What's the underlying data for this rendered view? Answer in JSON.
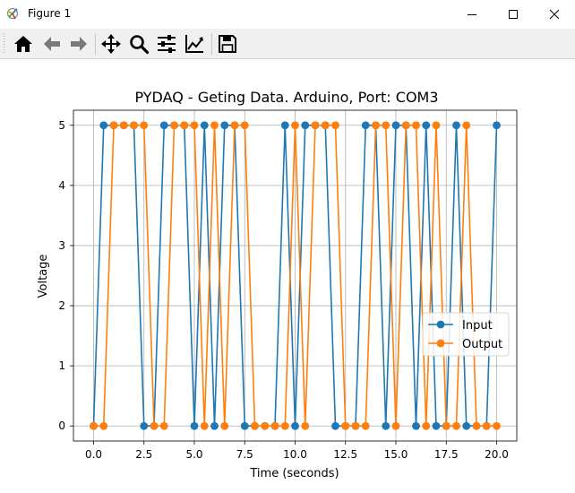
{
  "window": {
    "title": "Figure 1",
    "icons": [
      "app-icon",
      "minimize-icon",
      "maximize-icon",
      "close-icon"
    ]
  },
  "toolbar": {
    "buttons": [
      {
        "name": "home",
        "icon": "home-icon",
        "tooltip": "Reset original view"
      },
      {
        "name": "back",
        "icon": "back-arrow-icon",
        "tooltip": "Back to previous view"
      },
      {
        "name": "forward",
        "icon": "forward-arrow-icon",
        "tooltip": "Forward to next view"
      },
      {
        "name": "pan",
        "icon": "move-icon",
        "tooltip": "Pan axes"
      },
      {
        "name": "zoom",
        "icon": "zoom-icon",
        "tooltip": "Zoom to rectangle"
      },
      {
        "name": "configure",
        "icon": "sliders-icon",
        "tooltip": "Configure subplots"
      },
      {
        "name": "edit",
        "icon": "line-chart-icon",
        "tooltip": "Edit axis, curve and image parameters"
      },
      {
        "name": "save",
        "icon": "save-icon",
        "tooltip": "Save the figure"
      }
    ]
  },
  "chart_data": {
    "type": "line",
    "title": "PYDAQ - Geting Data. Arduino, Port: COM3",
    "xlabel": "Time (seconds)",
    "ylabel": "Voltage",
    "xlim": [
      -1.0,
      21.0
    ],
    "ylim": [
      -0.25,
      5.25
    ],
    "xticks": [
      0.0,
      2.5,
      5.0,
      7.5,
      10.0,
      12.5,
      15.0,
      17.5,
      20.0
    ],
    "xtick_labels": [
      "0.0",
      "2.5",
      "5.0",
      "7.5",
      "10.0",
      "12.5",
      "15.0",
      "17.5",
      "20.0"
    ],
    "yticks": [
      0,
      1,
      2,
      3,
      4,
      5
    ],
    "ytick_labels": [
      "0",
      "1",
      "2",
      "3",
      "4",
      "5"
    ],
    "grid": true,
    "legend": "center-right",
    "series": [
      {
        "name": "Input",
        "color": "#1f77b4",
        "marker": "circle",
        "x": [
          0.0,
          0.5,
          1.0,
          1.5,
          2.0,
          2.5,
          3.0,
          3.5,
          4.0,
          4.5,
          5.0,
          5.5,
          6.0,
          6.5,
          7.0,
          7.5,
          8.0,
          8.5,
          9.0,
          9.5,
          10.0,
          10.5,
          11.0,
          11.5,
          12.0,
          12.5,
          13.0,
          13.5,
          14.0,
          14.5,
          15.0,
          15.5,
          16.0,
          16.5,
          17.0,
          17.5,
          18.0,
          18.5,
          19.0,
          19.5,
          20.0
        ],
        "y": [
          0,
          5,
          5,
          5,
          5,
          0,
          0,
          5,
          5,
          5,
          0,
          5,
          0,
          5,
          5,
          0,
          0,
          0,
          0,
          5,
          0,
          5,
          5,
          5,
          0,
          0,
          0,
          5,
          5,
          0,
          5,
          5,
          0,
          5,
          0,
          0,
          5,
          0,
          0,
          0,
          5
        ]
      },
      {
        "name": "Output",
        "color": "#ff7f0e",
        "marker": "circle",
        "x": [
          0.0,
          0.5,
          1.0,
          1.5,
          2.0,
          2.5,
          3.0,
          3.5,
          4.0,
          4.5,
          5.0,
          5.5,
          6.0,
          6.5,
          7.0,
          7.5,
          8.0,
          8.5,
          9.0,
          9.5,
          10.0,
          10.5,
          11.0,
          11.5,
          12.0,
          12.5,
          13.0,
          13.5,
          14.0,
          14.5,
          15.0,
          15.5,
          16.0,
          16.5,
          17.0,
          17.5,
          18.0,
          18.5,
          19.0,
          19.5,
          20.0
        ],
        "y": [
          0,
          0,
          5,
          5,
          5,
          5,
          0,
          0,
          5,
          5,
          5,
          0,
          5,
          0,
          5,
          5,
          0,
          0,
          0,
          0,
          5,
          0,
          5,
          5,
          5,
          0,
          0,
          0,
          5,
          5,
          0,
          5,
          5,
          0,
          5,
          0,
          0,
          5,
          0,
          0,
          0
        ]
      }
    ]
  }
}
